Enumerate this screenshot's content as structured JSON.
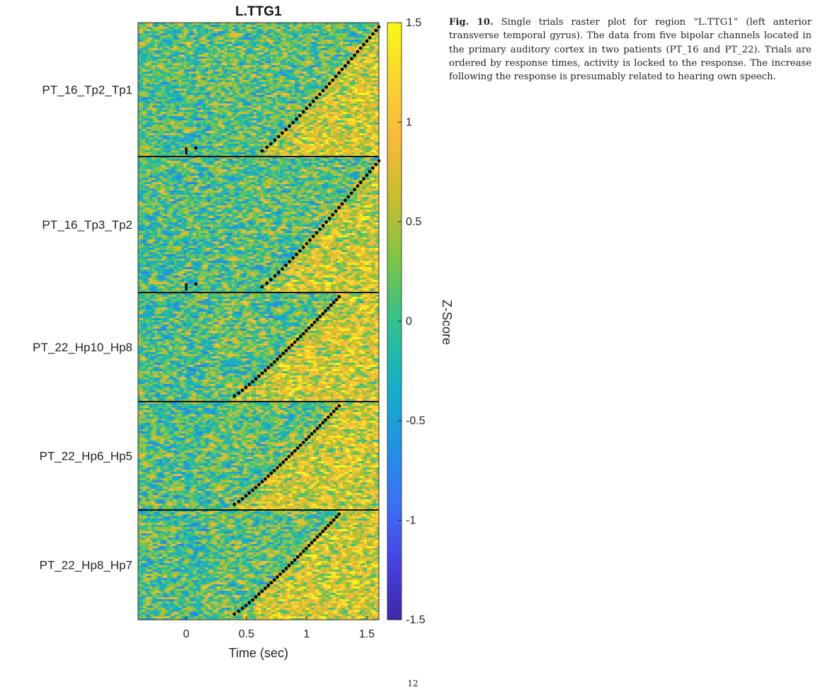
{
  "chart_data": {
    "type": "heatmap",
    "title": "L.TTG1",
    "xlabel": "Time (sec)",
    "colorbar_label": "Z-Score",
    "xlim": [
      -0.4,
      1.6
    ],
    "x_ticks": [
      0,
      0.5,
      1,
      1.5
    ],
    "x_tick_labels": [
      "0",
      "0.5",
      "1",
      "1.5"
    ],
    "colorbar_range": [
      -1.5,
      1.5
    ],
    "colorbar_ticks": [
      1.5,
      1,
      0.5,
      0,
      -0.5,
      -1,
      -1.5
    ],
    "colorbar_tick_labels": [
      "1.5",
      "1",
      "0.5",
      "0",
      "-0.5",
      "-1",
      "-1.5"
    ],
    "colormap": "parula",
    "colormap_stops": [
      "#3e26a8",
      "#4744e6",
      "#3a73f7",
      "#1f96e1",
      "#13b3c2",
      "#32c18c",
      "#7cc548",
      "#c3be2d",
      "#f7b93a",
      "#fbd130",
      "#f9fb15"
    ],
    "marker_color": "#000000",
    "channels": [
      {
        "label": "PT_16_Tp2_Tp1",
        "response_time_range": [
          0.63,
          1.6
        ]
      },
      {
        "label": "PT_16_Tp3_Tp2",
        "response_time_range": [
          0.63,
          1.6
        ]
      },
      {
        "label": "PT_22_Hp10_Hp8",
        "response_time_range": [
          0.4,
          1.27
        ]
      },
      {
        "label": "PT_22_Hp6_Hp5",
        "response_time_range": [
          0.4,
          1.27
        ]
      },
      {
        "label": "PT_22_Hp8_Hp7",
        "response_time_range": [
          0.4,
          1.27
        ]
      }
    ]
  },
  "caption": {
    "label": "Fig. 10.",
    "text": " Single trials raster plot for region “L.TTG1” (left anterior transverse temporal gyrus). The data from five bipolar channels located in the primary auditory cortex in two patients (PT_16 and PT_22). Trials are ordered by response times, activity is locked to the response. The increase following the response is presumably related to hearing own speech."
  },
  "page_number": "12"
}
